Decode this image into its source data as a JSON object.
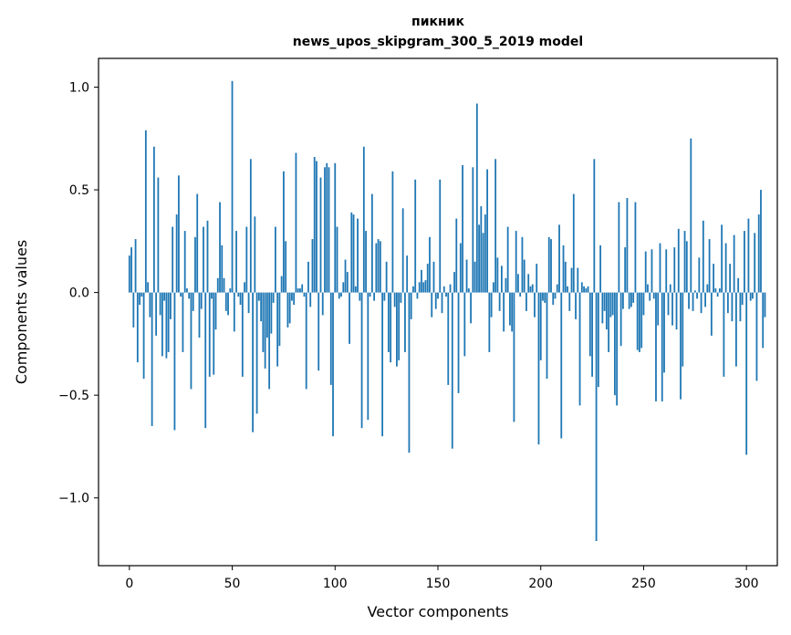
{
  "chart_data": {
    "type": "bar",
    "title": "пикник",
    "subtitle": "news_upos_skipgram_300_5_2019 model",
    "xlabel": "Vector components",
    "ylabel": "Components values",
    "xlim": [
      -15,
      315
    ],
    "ylim": [
      -1.33,
      1.14
    ],
    "x_ticks": [
      0,
      50,
      100,
      150,
      200,
      250,
      300
    ],
    "x_tick_labels": [
      "0",
      "50",
      "100",
      "150",
      "200",
      "250",
      "300"
    ],
    "y_ticks": [
      -1.0,
      -0.5,
      0.0,
      0.5,
      1.0
    ],
    "y_tick_labels": [
      "−1.0",
      "−0.5",
      "0.0",
      "0.5",
      "1.0"
    ],
    "grid": false,
    "bar_color": "#1f77b4",
    "values": [
      0.18,
      0.22,
      -0.17,
      0.26,
      -0.34,
      -0.06,
      -0.02,
      -0.42,
      0.79,
      0.05,
      -0.12,
      -0.65,
      0.71,
      -0.21,
      0.56,
      -0.11,
      -0.31,
      -0.04,
      -0.32,
      -0.29,
      -0.13,
      0.32,
      -0.67,
      0.38,
      0.57,
      -0.02,
      -0.29,
      0.3,
      0.02,
      -0.03,
      -0.47,
      -0.09,
      0.27,
      0.48,
      -0.22,
      -0.08,
      0.32,
      -0.66,
      0.35,
      -0.41,
      -0.03,
      -0.4,
      -0.18,
      0.07,
      0.44,
      0.23,
      0.07,
      -0.09,
      -0.11,
      0.02,
      1.03,
      -0.19,
      0.3,
      -0.02,
      -0.06,
      -0.41,
      0.05,
      0.32,
      -0.1,
      0.65,
      -0.68,
      0.37,
      -0.59,
      -0.04,
      -0.14,
      -0.29,
      -0.37,
      -0.22,
      -0.47,
      -0.2,
      -0.05,
      0.32,
      -0.36,
      -0.26,
      0.08,
      0.59,
      0.25,
      -0.17,
      -0.15,
      -0.04,
      -0.06,
      0.68,
      0.02,
      0.02,
      0.04,
      -0.02,
      -0.47,
      0.15,
      -0.07,
      0.26,
      0.66,
      0.64,
      -0.38,
      0.56,
      -0.11,
      0.61,
      0.63,
      0.61,
      -0.45,
      -0.7,
      0.63,
      0.32,
      -0.03,
      -0.02,
      0.05,
      0.16,
      0.1,
      -0.25,
      0.39,
      0.38,
      0.03,
      0.36,
      -0.04,
      -0.66,
      0.71,
      0.3,
      -0.62,
      -0.02,
      0.48,
      -0.04,
      0.24,
      0.26,
      0.25,
      -0.7,
      -0.04,
      0.15,
      -0.29,
      -0.34,
      0.59,
      -0.07,
      -0.36,
      -0.33,
      -0.05,
      0.41,
      -0.29,
      0.18,
      -0.78,
      -0.13,
      0.03,
      0.55,
      -0.03,
      0.05,
      0.11,
      0.05,
      0.06,
      0.14,
      0.27,
      -0.12,
      0.15,
      -0.08,
      -0.03,
      0.55,
      -0.1,
      0.03,
      -0.02,
      -0.45,
      0.04,
      -0.76,
      0.1,
      0.36,
      -0.49,
      0.24,
      0.62,
      -0.31,
      0.16,
      0.02,
      -0.15,
      0.61,
      0.15,
      0.92,
      0.33,
      0.42,
      0.29,
      0.38,
      0.6,
      -0.29,
      -0.12,
      0.05,
      0.65,
      0.17,
      -0.09,
      0.13,
      -0.19,
      0.07,
      0.32,
      -0.16,
      -0.19,
      -0.63,
      0.3,
      0.09,
      -0.02,
      0.27,
      0.16,
      -0.09,
      0.09,
      0.03,
      0.04,
      -0.12,
      0.14,
      -0.74,
      -0.33,
      -0.04,
      -0.05,
      -0.42,
      0.27,
      0.26,
      -0.06,
      -0.03,
      0.04,
      0.33,
      -0.71,
      0.23,
      0.15,
      0.03,
      -0.09,
      0.12,
      0.48,
      -0.13,
      0.12,
      -0.55,
      0.05,
      0.03,
      0.02,
      0.03,
      -0.31,
      -0.41,
      0.65,
      -1.21,
      -0.46,
      0.23,
      -0.15,
      -0.09,
      -0.18,
      -0.29,
      -0.12,
      -0.11,
      -0.5,
      -0.55,
      0.44,
      -0.26,
      -0.08,
      0.22,
      0.46,
      -0.08,
      -0.07,
      -0.05,
      0.44,
      -0.28,
      -0.29,
      -0.27,
      -0.11,
      0.2,
      0.04,
      -0.04,
      0.21,
      -0.03,
      -0.53,
      -0.16,
      0.24,
      -0.53,
      -0.39,
      0.21,
      -0.11,
      0.04,
      -0.16,
      0.22,
      -0.18,
      0.31,
      -0.52,
      -0.36,
      0.3,
      0.25,
      -0.08,
      0.75,
      -0.09,
      0.01,
      -0.03,
      0.17,
      -0.1,
      0.35,
      -0.07,
      0.04,
      0.26,
      -0.21,
      0.14,
      0.02,
      -0.02,
      0.02,
      0.33,
      -0.41,
      0.24,
      -0.1,
      0.14,
      -0.14,
      0.28,
      -0.36,
      0.07,
      -0.14,
      -0.06,
      0.3,
      -0.79,
      0.36,
      -0.04,
      -0.03,
      0.29,
      -0.43,
      0.38,
      0.5,
      -0.27,
      -0.12
    ]
  }
}
